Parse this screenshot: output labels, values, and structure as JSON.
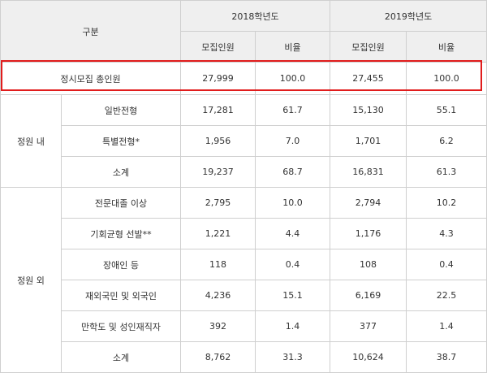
{
  "header": {
    "category": "구분",
    "year_2018": "2018학년도",
    "year_2019": "2019학년도",
    "sub_count_2018": "모집인원",
    "sub_ratio_2018": "비율",
    "sub_count_2019": "모집인원",
    "sub_ratio_2019": "비율"
  },
  "total": {
    "label": "정시모집 총인원",
    "c2018": "27,999",
    "r2018": "100.0",
    "c2019": "27,455",
    "r2019": "100.0"
  },
  "groups": [
    {
      "label": "정원 내",
      "rows": [
        {
          "label": "일반전형",
          "c2018": "17,281",
          "r2018": "61.7",
          "c2019": "15,130",
          "r2019": "55.1"
        },
        {
          "label": "특별전형*",
          "c2018": "1,956",
          "r2018": "7.0",
          "c2019": "1,701",
          "r2019": "6.2"
        },
        {
          "label": "소계",
          "c2018": "19,237",
          "r2018": "68.7",
          "c2019": "16,831",
          "r2019": "61.3"
        }
      ]
    },
    {
      "label": "정원 외",
      "rows": [
        {
          "label": "전문대졸 이상",
          "c2018": "2,795",
          "r2018": "10.0",
          "c2019": "2,794",
          "r2019": "10.2"
        },
        {
          "label": "기회균형 선발**",
          "c2018": "1,221",
          "r2018": "4.4",
          "c2019": "1,176",
          "r2019": "4.3"
        },
        {
          "label": "장애인 등",
          "c2018": "118",
          "r2018": "0.4",
          "c2019": "108",
          "r2019": "0.4"
        },
        {
          "label": "재외국민 및 외국인",
          "c2018": "4,236",
          "r2018": "15.1",
          "c2019": "6,169",
          "r2019": "22.5"
        },
        {
          "label": "만학도 및 성인재직자",
          "c2018": "392",
          "r2018": "1.4",
          "c2019": "377",
          "r2019": "1.4"
        },
        {
          "label": "소계",
          "c2018": "8,762",
          "r2018": "31.3",
          "c2019": "10,624",
          "r2019": "38.7"
        }
      ]
    }
  ],
  "highlight_color": "#e11c1c"
}
